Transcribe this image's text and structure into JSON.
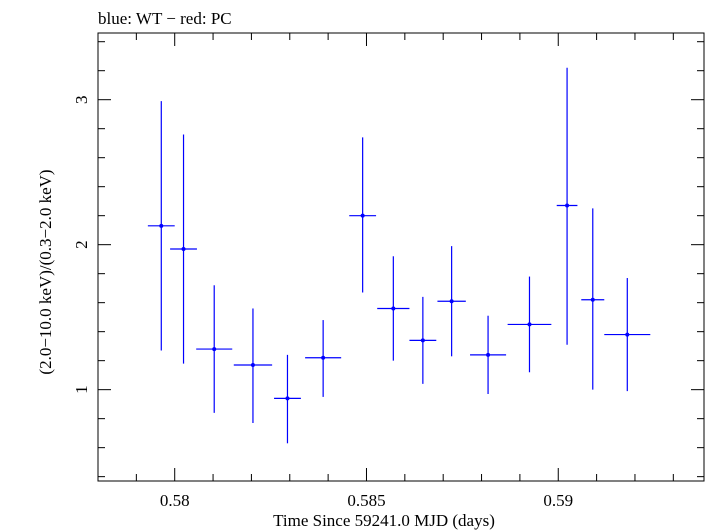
{
  "chart_data": {
    "type": "scatter",
    "title": "blue: WT − red: PC",
    "xlabel": "Time Since 59241.0 MJD (days)",
    "ylabel": "(2.0−10.0 keV)/(0.3−2.0 keV)",
    "xlim": [
      0.578,
      0.5938
    ],
    "ylim": [
      0.37,
      3.46
    ],
    "xticks": [
      0.58,
      0.585,
      0.59
    ],
    "xtick_labels": [
      "0.58",
      "0.585",
      "0.59"
    ],
    "yticks": [
      1,
      2,
      3
    ],
    "ytick_labels": [
      "1",
      "2",
      "3"
    ],
    "grid": false,
    "series": [
      {
        "color": "#0000ff",
        "points": [
          {
            "x": 0.57965,
            "y": 2.13,
            "xerr": 0.00035,
            "ylo": 1.27,
            "yhi": 2.99
          },
          {
            "x": 0.58023,
            "y": 1.97,
            "xerr": 0.00035,
            "ylo": 1.18,
            "yhi": 2.76
          },
          {
            "x": 0.58103,
            "y": 1.28,
            "xerr": 0.00047,
            "ylo": 0.84,
            "yhi": 1.72
          },
          {
            "x": 0.58204,
            "y": 1.17,
            "xerr": 0.0005,
            "ylo": 0.77,
            "yhi": 1.56
          },
          {
            "x": 0.58294,
            "y": 0.94,
            "xerr": 0.00035,
            "ylo": 0.63,
            "yhi": 1.24
          },
          {
            "x": 0.58387,
            "y": 1.22,
            "xerr": 0.00047,
            "ylo": 0.95,
            "yhi": 1.48
          },
          {
            "x": 0.5849,
            "y": 2.2,
            "xerr": 0.00035,
            "ylo": 1.67,
            "yhi": 2.74
          },
          {
            "x": 0.5857,
            "y": 1.56,
            "xerr": 0.00042,
            "ylo": 1.2,
            "yhi": 1.92
          },
          {
            "x": 0.58647,
            "y": 1.34,
            "xerr": 0.00035,
            "ylo": 1.04,
            "yhi": 1.64
          },
          {
            "x": 0.58722,
            "y": 1.61,
            "xerr": 0.00037,
            "ylo": 1.23,
            "yhi": 1.99
          },
          {
            "x": 0.58817,
            "y": 1.24,
            "xerr": 0.00047,
            "ylo": 0.97,
            "yhi": 1.51
          },
          {
            "x": 0.58925,
            "y": 1.45,
            "xerr": 0.00057,
            "ylo": 1.12,
            "yhi": 1.78
          },
          {
            "x": 0.59023,
            "y": 2.27,
            "xerr": 0.00027,
            "ylo": 1.31,
            "yhi": 3.22
          },
          {
            "x": 0.5909,
            "y": 1.62,
            "xerr": 0.0003,
            "ylo": 1.0,
            "yhi": 2.25
          },
          {
            "x": 0.5918,
            "y": 1.38,
            "xerr": 0.0006,
            "ylo": 0.99,
            "yhi": 1.77
          }
        ]
      }
    ]
  }
}
